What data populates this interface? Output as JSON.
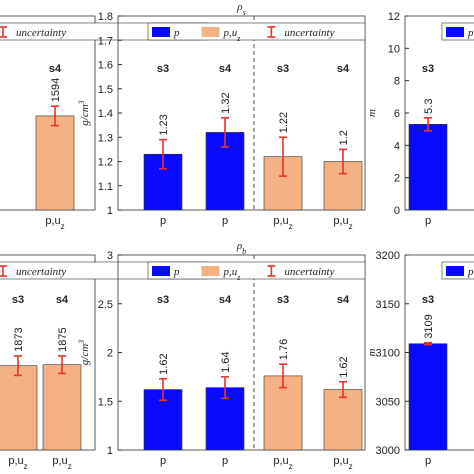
{
  "chart_data": [
    {
      "type": "bar",
      "groups": [
        "s4"
      ],
      "categories": [
        {
          "text": "p,u",
          "sub": "z"
        }
      ],
      "values": [
        1594
      ],
      "errors": [
        20
      ],
      "colors": [
        "#f4b183"
      ],
      "ylim": [
        1400,
        1800
      ],
      "legend": [
        {
          "name": "uncertainty",
          "kind": "error",
          "color": "#e8322b"
        }
      ]
    },
    {
      "type": "bar",
      "title": {
        "text": "ρ",
        "sub": "s"
      },
      "ylabel": {
        "text": "g/cm",
        "sup": "3"
      },
      "groups": [
        "s3",
        "s4",
        "s3",
        "s4"
      ],
      "categories": [
        {
          "text": "p"
        },
        {
          "text": "p"
        },
        {
          "text": "p,u",
          "sub": "z"
        },
        {
          "text": "p,u",
          "sub": "z"
        }
      ],
      "values": [
        1.23,
        1.32,
        1.22,
        1.2
      ],
      "errors": [
        0.06,
        0.06,
        0.08,
        0.05
      ],
      "colors": [
        "#0a0aff",
        "#0a0aff",
        "#f4b183",
        "#f4b183"
      ],
      "ylim": [
        1,
        1.8
      ],
      "yticks": [
        {
          "value": 1,
          "label": "1"
        },
        1.1,
        1.2,
        1.3,
        1.4,
        1.5,
        1.6,
        1.7,
        1.8
      ],
      "divider": true,
      "legend": [
        {
          "name": "p",
          "kind": "bar",
          "color": "#0a0aff"
        },
        {
          "name": "p,u",
          "sub": "z",
          "kind": "bar",
          "color": "#f4b183"
        },
        {
          "name": "uncertainty",
          "kind": "error",
          "color": "#e8322b"
        }
      ]
    },
    {
      "type": "bar",
      "ylabel": {
        "text": "m"
      },
      "groups": [
        "s3"
      ],
      "categories": [
        {
          "text": "p"
        }
      ],
      "values": [
        5.3
      ],
      "errors": [
        0.4
      ],
      "colors": [
        "#0a0aff"
      ],
      "ylim": [
        0,
        12
      ],
      "yticks": [
        0,
        2,
        4,
        6,
        8,
        10,
        12
      ],
      "legend": [
        {
          "name": "p",
          "kind": "bar",
          "color": "#0a0aff"
        }
      ]
    },
    {
      "type": "bar",
      "groups": [
        "s3",
        "s4"
      ],
      "categories": [
        {
          "text": "p,u",
          "sub": "z"
        },
        {
          "text": "p,u",
          "sub": "z"
        }
      ],
      "values": [
        1873,
        1875
      ],
      "errors": [
        20,
        18
      ],
      "colors": [
        "#f4b183",
        "#f4b183"
      ],
      "ylim": [
        1700,
        2100
      ],
      "legend": [
        {
          "name": "uncertainty",
          "kind": "error",
          "color": "#e8322b"
        }
      ]
    },
    {
      "type": "bar",
      "title": {
        "text": "ρ",
        "sub": "b"
      },
      "ylabel": {
        "text": "g/cm",
        "sup": "3"
      },
      "groups": [
        "s3",
        "s4",
        "s3",
        "s4"
      ],
      "categories": [
        {
          "text": "p"
        },
        {
          "text": "p"
        },
        {
          "text": "p,u",
          "sub": "z"
        },
        {
          "text": "p,u",
          "sub": "z"
        }
      ],
      "values": [
        1.62,
        1.64,
        1.76,
        1.62
      ],
      "errors": [
        0.11,
        0.11,
        0.12,
        0.08
      ],
      "colors": [
        "#0a0aff",
        "#0a0aff",
        "#f4b183",
        "#f4b183"
      ],
      "ylim": [
        1,
        3
      ],
      "yticks": [
        1,
        1.5,
        2,
        2.5,
        3
      ],
      "divider": true,
      "legend": [
        {
          "name": "p",
          "kind": "bar",
          "color": "#0a0aff"
        },
        {
          "name": "p,u",
          "sub": "z",
          "kind": "bar",
          "color": "#f4b183"
        },
        {
          "name": "uncertainty",
          "kind": "error",
          "color": "#e8322b"
        }
      ]
    },
    {
      "type": "bar",
      "ylabel": {
        "text": "m"
      },
      "groups": [
        "s3"
      ],
      "categories": [
        {
          "text": "p"
        }
      ],
      "values": [
        3109
      ],
      "errors": [
        1
      ],
      "colors": [
        "#0a0aff"
      ],
      "ylim": [
        3000,
        3200
      ],
      "yticks": [
        3000,
        3050,
        3100,
        3150,
        3200
      ],
      "legend": [
        {
          "name": "p",
          "kind": "bar",
          "color": "#0a0aff"
        }
      ]
    }
  ]
}
